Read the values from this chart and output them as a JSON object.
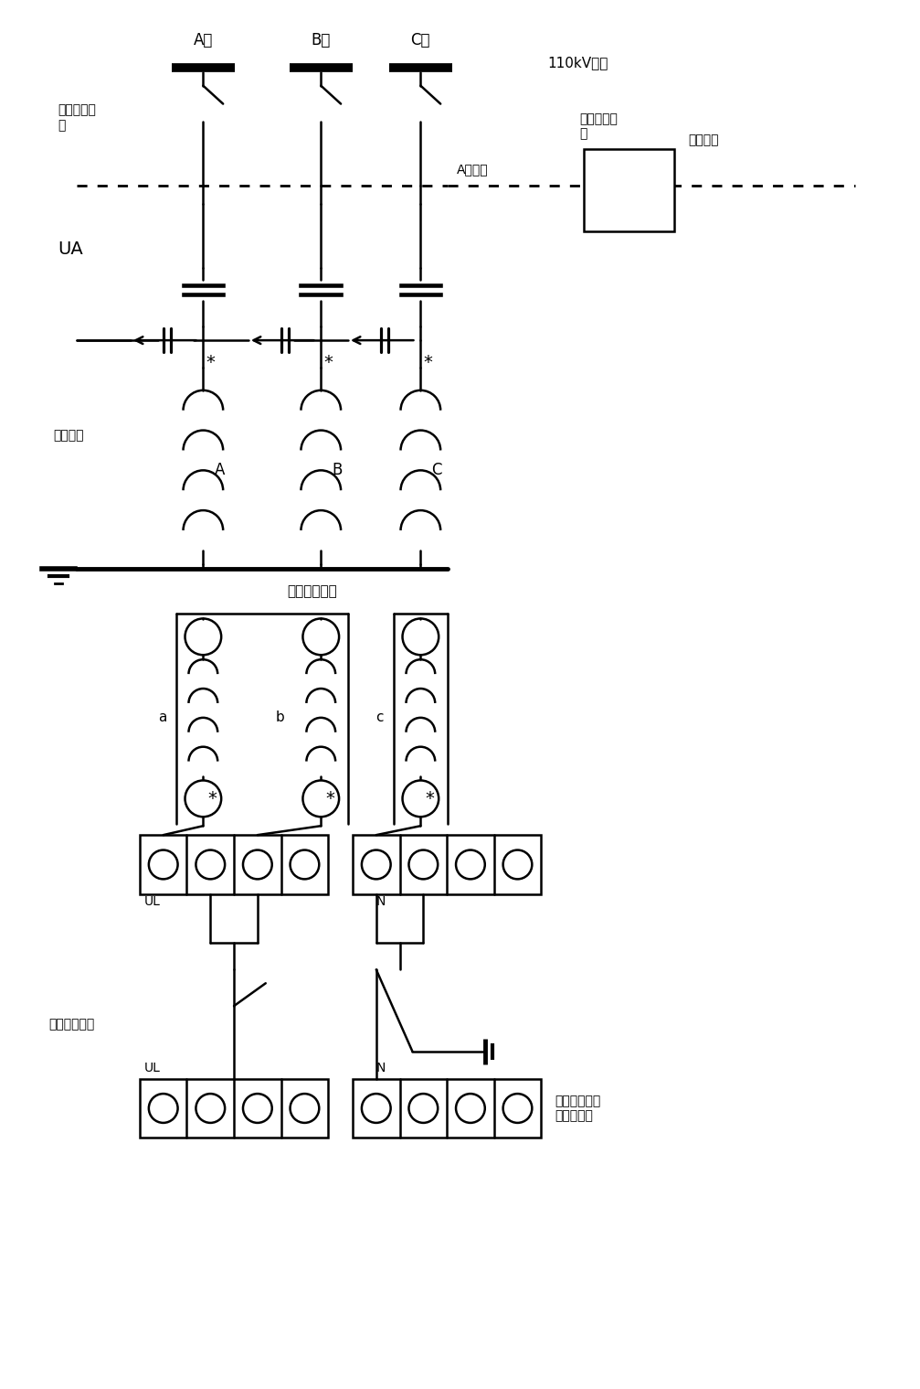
{
  "fig_width": 10.07,
  "fig_height": 15.19,
  "bg_color": "#ffffff",
  "labels": {
    "A_phase": "A相",
    "B_phase": "B相",
    "C_phase": "C相",
    "busbar_110": "110kV母线",
    "bus_isolator": "母线隔离开\n关",
    "test_air_sw": "试验空气开\n关",
    "test_source": "试验电源",
    "A_source": "A相电源",
    "UA": "UA",
    "primary_winding": "一次绕组",
    "secondary_winding": "零序二次绕组",
    "a_label": "a",
    "b_label": "b",
    "c_label": "c",
    "A_label": "A",
    "B_label": "B",
    "C_label": "C",
    "UL": "UL",
    "N": "N",
    "zero_voltage_sw": "零序电压空开",
    "ctrl_terminal": "控刽室继电保\n护屏柜端子"
  }
}
